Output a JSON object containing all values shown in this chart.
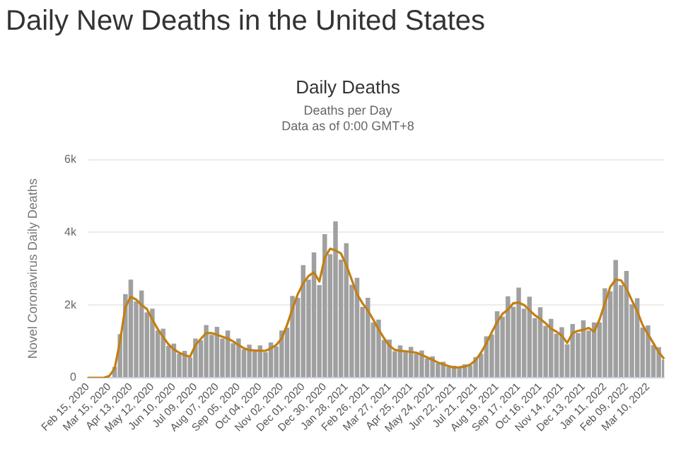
{
  "chart_data": {
    "type": "bar",
    "title": "Daily New Deaths in the United States",
    "subtitle": "Daily Deaths",
    "annotations": [
      "Deaths per Day",
      "Data as of 0:00 GMT+8"
    ],
    "ylabel": "Novel Coronavirus Daily Deaths",
    "categories": [
      "Feb 15, 2020",
      null,
      null,
      null,
      "Mar 15, 2020",
      null,
      null,
      null,
      "Apr 13, 2020",
      null,
      null,
      null,
      "May 12, 2020",
      null,
      null,
      null,
      "Jun 10, 2020",
      null,
      null,
      null,
      "Jul 09, 2020",
      null,
      null,
      null,
      "Aug 07, 2020",
      null,
      null,
      null,
      "Sep 05, 2020",
      null,
      null,
      null,
      "Oct 04, 2020",
      null,
      null,
      null,
      "Nov 02, 2020",
      null,
      null,
      null,
      "Dec 01, 2020",
      null,
      null,
      null,
      "Dec 30, 2020",
      null,
      null,
      null,
      "Jan 28, 2021",
      null,
      null,
      null,
      "Feb 26, 2021",
      null,
      null,
      null,
      "Mar 27, 2021",
      null,
      null,
      null,
      "Apr 25, 2021",
      null,
      null,
      null,
      "May 24, 2021",
      null,
      null,
      null,
      "Jun 22, 2021",
      null,
      null,
      null,
      "Jul 21, 2021",
      null,
      null,
      null,
      "Aug 19, 2021",
      null,
      null,
      null,
      "Sep 17, 2021",
      null,
      null,
      null,
      "Oct 16, 2021",
      null,
      null,
      null,
      "Nov 14, 2021",
      null,
      null,
      null,
      "Dec 13, 2021",
      null,
      null,
      null,
      "Jan 11, 2022",
      null,
      null,
      null,
      "Feb 09, 2022",
      null,
      null,
      null,
      "Mar 10, 2022",
      null,
      null,
      null
    ],
    "series": [
      {
        "color": "#a0a0a0",
        "values": [
          0,
          0,
          0,
          0,
          null,
          300,
          1200,
          2300,
          2700,
          2100,
          2400,
          1800,
          1900,
          1300,
          1350,
          880,
          940,
          660,
          740,
          560,
          1080,
          1030,
          1450,
          1180,
          1400,
          1080,
          1300,
          950,
          1080,
          780,
          910,
          720,
          890,
          700,
          970,
          860,
          1300,
          1380,
          2250,
          2200,
          3100,
          2700,
          3450,
          2550,
          3950,
          3400,
          4300,
          3250,
          3700,
          2560,
          2750,
          1950,
          2200,
          1520,
          1600,
          1040,
          1050,
          730,
          890,
          700,
          850,
          660,
          750,
          530,
          590,
          400,
          440,
          300,
          330,
          280,
          370,
          340,
          570,
          660,
          1140,
          1190,
          1830,
          1680,
          2240,
          1950,
          2480,
          1900,
          2230,
          1640,
          1940,
          1430,
          1620,
          1210,
          1390,
          920,
          1480,
          1230,
          1580,
          1300,
          1520,
          1520,
          2460,
          2380,
          3240,
          2550,
          2940,
          2020,
          2190,
          1380,
          1440,
          900,
          840,
          500
        ]
      },
      {
        "type": "line",
        "color": "#c27f12",
        "values": [
          0,
          0,
          0,
          0,
          50,
          250,
          1000,
          1950,
          2230,
          2150,
          2000,
          1890,
          1600,
          1340,
          1120,
          920,
          780,
          690,
          620,
          580,
          900,
          1070,
          1230,
          1230,
          1180,
          1130,
          1080,
          1000,
          900,
          810,
          760,
          750,
          740,
          740,
          810,
          900,
          1080,
          1450,
          1890,
          2300,
          2600,
          2800,
          2900,
          2650,
          3300,
          3550,
          3500,
          3420,
          3100,
          2700,
          2300,
          2050,
          1850,
          1600,
          1330,
          1090,
          880,
          770,
          740,
          730,
          710,
          690,
          630,
          560,
          490,
          420,
          370,
          320,
          280,
          290,
          310,
          360,
          480,
          690,
          950,
          1250,
          1530,
          1760,
          1870,
          2050,
          2070,
          2000,
          1860,
          1720,
          1620,
          1500,
          1350,
          1270,
          1160,
          960,
          1230,
          1290,
          1320,
          1370,
          1270,
          1600,
          2050,
          2500,
          2700,
          2680,
          2450,
          2130,
          1830,
          1450,
          1200,
          950,
          700,
          520
        ]
      }
    ],
    "ylim": [
      0,
      6000
    ],
    "yticks": [
      0,
      {
        "value": 2000,
        "label": "2k"
      },
      {
        "value": 4000,
        "label": "4k"
      },
      {
        "value": 6000,
        "label": "6k"
      }
    ],
    "grid": "y",
    "legend": false
  }
}
